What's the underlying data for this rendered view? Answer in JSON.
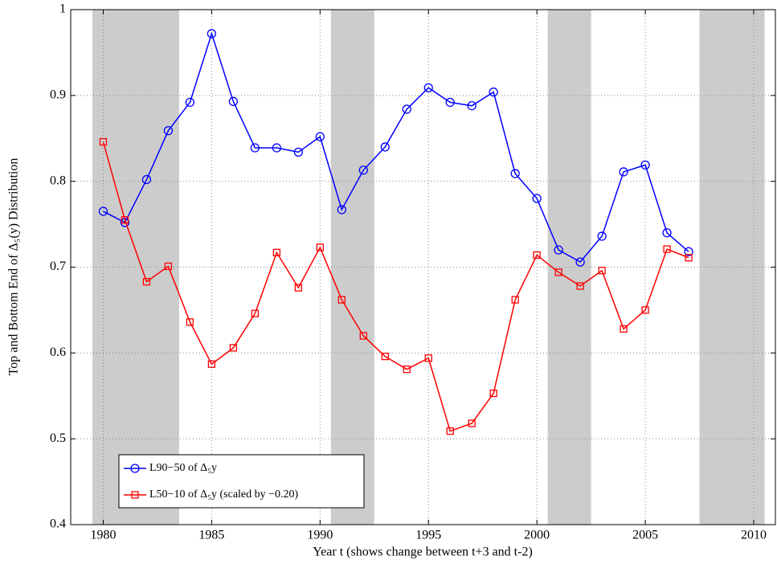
{
  "chart_data": {
    "type": "line",
    "x_label": "Year t (shows change between t+3 and t-2)",
    "y_label": "Top and Bottom End of Δ₅(y) Distribution",
    "x": [
      1980,
      1981,
      1982,
      1983,
      1984,
      1985,
      1986,
      1987,
      1988,
      1989,
      1990,
      1991,
      1992,
      1993,
      1994,
      1995,
      1996,
      1997,
      1998,
      1999,
      2000,
      2001,
      2002,
      2003,
      2004,
      2005,
      2006,
      2007
    ],
    "series": [
      {
        "name": "L90−50 of Δ₅y",
        "color": "#0000ff",
        "marker": "circle",
        "values": [
          0.765,
          0.752,
          0.802,
          0.859,
          0.892,
          0.972,
          0.893,
          0.839,
          0.839,
          0.834,
          0.852,
          0.767,
          0.813,
          0.84,
          0.884,
          0.909,
          0.892,
          0.888,
          0.904,
          0.809,
          0.78,
          0.72,
          0.706,
          0.736,
          0.811,
          0.819,
          0.74,
          0.718
        ]
      },
      {
        "name": "L50−10 of Δ₅y (scaled by −0.20)",
        "color": "#ff0000",
        "marker": "square",
        "values": [
          0.846,
          0.755,
          0.683,
          0.701,
          0.636,
          0.587,
          0.606,
          0.646,
          0.717,
          0.676,
          0.723,
          0.662,
          0.62,
          0.596,
          0.581,
          0.594,
          0.509,
          0.518,
          0.553,
          0.662,
          0.714,
          0.694,
          0.678,
          0.696,
          0.628,
          0.65,
          0.721,
          0.711
        ]
      }
    ],
    "shaded": [
      [
        1979.5,
        1983.5
      ],
      [
        1990.5,
        1992.5
      ],
      [
        2000.5,
        2002.5
      ],
      [
        2007.5,
        2010.5
      ]
    ],
    "shade_color": "#cccccc",
    "xlim": [
      1978.5,
      2011
    ],
    "ylim": [
      0.4,
      1
    ],
    "xticks": [
      1980,
      1985,
      1990,
      1995,
      2000,
      2005,
      2010
    ],
    "yticks": [
      0.4,
      0.5,
      0.6,
      0.7,
      0.8,
      0.9,
      1
    ],
    "grid": true,
    "legend": "lower left"
  }
}
